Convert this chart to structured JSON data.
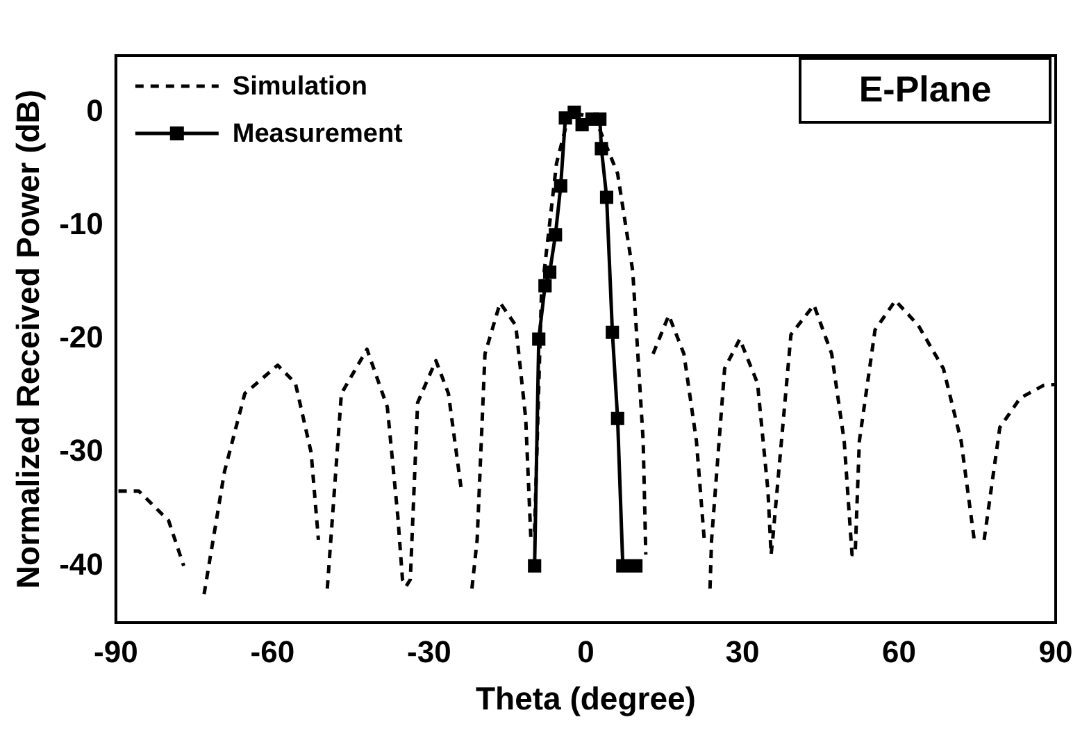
{
  "chart_data": {
    "type": "line",
    "xlabel": "Theta (degree)",
    "ylabel": "Normalized Received Power (dB)",
    "annotations": [
      "E-Plane"
    ],
    "xlim": [
      -90,
      90
    ],
    "xticks": [
      -90,
      -60,
      -30,
      0,
      30,
      60,
      90
    ],
    "ylim": [
      -45,
      5
    ],
    "yticks": [
      -40,
      -30,
      -20,
      -10,
      0
    ],
    "grid": false,
    "legend": "top left",
    "series": [
      {
        "name": "Simulation",
        "color": "#000000",
        "line_style": "dashed",
        "marker": "none",
        "x": [
          -89.5,
          -85.6,
          -79.9,
          -77,
          -75.8,
          -75.2,
          -73.1,
          -69.2,
          -65.3,
          -59,
          -55.6,
          -52.6,
          -51.2,
          -50.5,
          -49.5,
          -46.8,
          -41.9,
          -38,
          -36,
          -35.1,
          -34.4,
          -33.6,
          -32.2,
          -28.7,
          -26.3,
          -23.8,
          -22.8,
          -21.8,
          -20.8,
          -19.3,
          -16.4,
          -13.4,
          -11.5,
          -10.5,
          -10.3,
          -9.8,
          -8.5,
          -5.6,
          -3.1,
          0,
          2.2,
          6.1,
          9,
          11,
          11.5,
          12,
          12.3,
          12.9,
          15.9,
          18.8,
          21.2,
          22.7,
          23.3,
          23.8,
          24.1,
          26.6,
          29.5,
          32.9,
          34.9,
          35.5,
          35.8,
          39.3,
          43.7,
          47.1,
          49.5,
          51,
          51.6,
          52.4,
          55.4,
          59.3,
          63.7,
          68.5,
          71.9,
          74.4,
          75.6,
          76.1,
          76.3,
          79.3,
          83.2,
          87.6,
          90
        ],
        "values": [
          -33.4,
          -33.4,
          -36,
          -40,
          null,
          null,
          -42.5,
          -31.7,
          -24.8,
          -22.3,
          -23.9,
          -30,
          -37.7,
          null,
          -42,
          -24.8,
          -20.9,
          -26,
          -35.6,
          -41.2,
          -41.8,
          -41.2,
          -25.6,
          -21.9,
          -24.8,
          -33.4,
          null,
          -42,
          -37.7,
          -21.3,
          -16.8,
          -18.8,
          -27,
          -37.7,
          null,
          -37,
          -16.2,
          -4.5,
          0,
          -0.3,
          -1,
          -5.4,
          -14,
          -29,
          -39,
          null,
          null,
          -21.3,
          -17.9,
          -21.3,
          -29,
          -37.7,
          null,
          -42,
          -37.7,
          -22.6,
          -20,
          -23.9,
          -33.4,
          -39,
          -37.7,
          -19.6,
          -17,
          -21.3,
          -29,
          -39,
          -39,
          -29,
          -19.2,
          -16.6,
          -18.8,
          -22.6,
          -29,
          -37.7,
          null,
          null,
          -37.7,
          -27.8,
          -25.2,
          -24.1,
          -24
        ]
      },
      {
        "name": "Measurement",
        "color": "#000000",
        "line_style": "solid",
        "marker": "square",
        "x": [
          -9.8,
          -9,
          -7.8,
          -6.9,
          -5.8,
          -4.8,
          -3.9,
          -2.2,
          -0.7,
          1.2,
          2.7,
          3,
          4,
          5.1,
          6.1,
          7.1,
          9.6
        ],
        "values": [
          -40,
          -20,
          -15.3,
          -14.1,
          -10.8,
          -6.5,
          -0.5,
          0,
          -1.1,
          -0.6,
          -0.6,
          -3.2,
          -7.5,
          -19.4,
          -27,
          -40,
          -40
        ]
      }
    ]
  }
}
